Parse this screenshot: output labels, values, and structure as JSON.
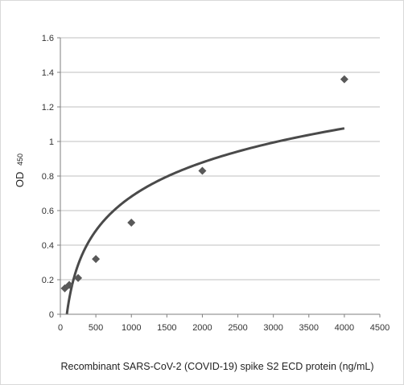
{
  "chart_data": {
    "type": "scatter",
    "title": "",
    "xlabel": "Recombinant SARS-CoV-2 (COVID-19) spike S2  ECD protein (ng/mL)",
    "ylabel_main": "OD",
    "ylabel_sub": "450",
    "xlim": [
      0,
      4500
    ],
    "ylim": [
      0,
      1.6
    ],
    "xticks": [
      "0",
      "500",
      "1000",
      "1500",
      "2000",
      "2500",
      "3000",
      "3500",
      "4000",
      "4500"
    ],
    "yticks": [
      "0",
      "0.2",
      "0.4",
      "0.6",
      "0.8",
      "1",
      "1.2",
      "1.4",
      "1.6"
    ],
    "grid": "horizontal",
    "series": [
      {
        "marker": "diamond",
        "color": "#595959",
        "x": [
          62.5,
          125,
          250,
          500,
          1000,
          2000,
          4000
        ],
        "y": [
          0.15,
          0.17,
          0.21,
          0.32,
          0.53,
          0.83,
          1.36
        ]
      }
    ],
    "trendline": {
      "type": "logarithmic",
      "color": "#4a4a4a",
      "a": 0.2847,
      "b": -1.2855,
      "x_start": 92,
      "x_end": 4000
    }
  }
}
